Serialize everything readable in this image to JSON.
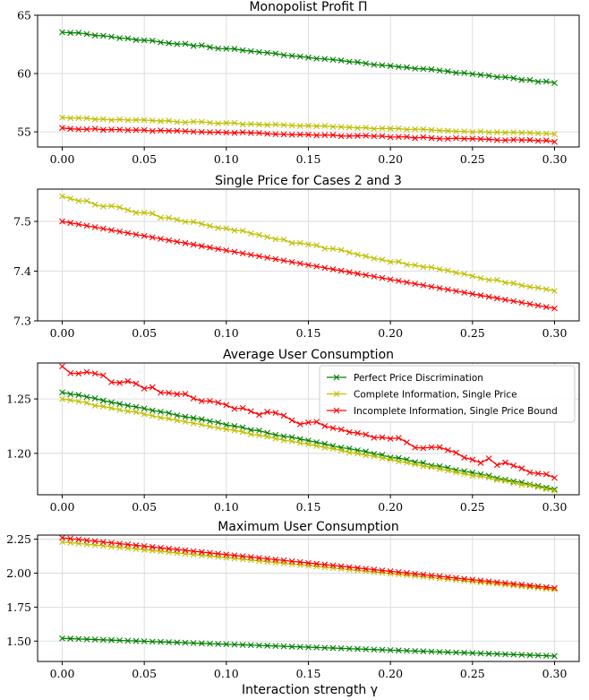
{
  "figure": {
    "xlabel": "Interaction strength γ"
  },
  "colors": {
    "ppd": "#008000",
    "cisp": "#bfbf00",
    "iispb": "#ff0000",
    "grid": "#d6d6d6",
    "axis": "#000000"
  },
  "legend_entries": [
    "Perfect Price Discrimination",
    "Complete Information, Single Price",
    "Incomplete Information, Single Price Bound"
  ],
  "chart_data": [
    {
      "type": "line",
      "title": "Monopolist Profit Π",
      "xlabel": "",
      "ylabel": "",
      "xlim": [
        -0.015,
        0.315
      ],
      "ylim": [
        53.7,
        65
      ],
      "x_ticks": [
        0.0,
        0.05,
        0.1,
        0.15,
        0.2,
        0.25,
        0.3
      ],
      "x_tick_labels": [
        "0.00",
        "0.05",
        "0.10",
        "0.15",
        "0.20",
        "0.25",
        "0.30"
      ],
      "y_ticks": [
        55,
        60,
        65
      ],
      "y_tick_labels": [
        "55",
        "60",
        "65"
      ],
      "grid": true,
      "legend": "none",
      "x": {
        "start": 0.0,
        "end": 0.3,
        "count": 61
      },
      "series": [
        {
          "name": "Perfect Price Discrimination",
          "color_key": "ppd",
          "marker": "x",
          "start": 63.6,
          "end": 59.2,
          "jitter": 0.06
        },
        {
          "name": "Complete Information, Single Price",
          "color_key": "cisp",
          "marker": "x",
          "start": 56.2,
          "end": 54.8,
          "jitter": 0.06
        },
        {
          "name": "Incomplete Information, Single Price Bound",
          "color_key": "iispb",
          "marker": "x",
          "start": 55.3,
          "end": 54.2,
          "jitter": 0.06
        }
      ]
    },
    {
      "type": "line",
      "title": "Single Price for Cases 2 and 3",
      "xlabel": "",
      "ylabel": "",
      "xlim": [
        -0.015,
        0.315
      ],
      "ylim": [
        7.3,
        7.565
      ],
      "x_ticks": [
        0.0,
        0.05,
        0.1,
        0.15,
        0.2,
        0.25,
        0.3
      ],
      "x_tick_labels": [
        "0.00",
        "0.05",
        "0.10",
        "0.15",
        "0.20",
        "0.25",
        "0.30"
      ],
      "y_ticks": [
        7.3,
        7.4,
        7.5
      ],
      "y_tick_labels": [
        "7.3",
        "7.4",
        "7.5"
      ],
      "grid": true,
      "legend": "none",
      "x": {
        "start": 0.0,
        "end": 0.3,
        "count": 61
      },
      "series": [
        {
          "name": "Complete Information, Single Price",
          "color_key": "cisp",
          "marker": "x",
          "start": 7.548,
          "end": 7.358,
          "jitter": 0.003
        },
        {
          "name": "Incomplete Information, Single Price Bound",
          "color_key": "iispb",
          "marker": "x",
          "start": 7.5,
          "end": 7.325,
          "jitter": 0.0
        }
      ]
    },
    {
      "type": "line",
      "title": "Average User Consumption",
      "xlabel": "",
      "ylabel": "",
      "xlim": [
        -0.015,
        0.315
      ],
      "ylim": [
        1.162,
        1.283
      ],
      "x_ticks": [
        0.0,
        0.05,
        0.1,
        0.15,
        0.2,
        0.25,
        0.3
      ],
      "x_tick_labels": [
        "0.00",
        "0.05",
        "0.10",
        "0.15",
        "0.20",
        "0.25",
        "0.30"
      ],
      "y_ticks": [
        1.2,
        1.25
      ],
      "y_tick_labels": [
        "1.20",
        "1.25"
      ],
      "grid": true,
      "legend": "top-right",
      "x": {
        "start": 0.0,
        "end": 0.3,
        "count": 61
      },
      "series": [
        {
          "name": "Perfect Price Discrimination",
          "color_key": "ppd",
          "marker": "x",
          "start": 1.256,
          "end": 1.167,
          "jitter": 0.0006
        },
        {
          "name": "Complete Information, Single Price",
          "color_key": "cisp",
          "marker": "x",
          "start": 1.25,
          "end": 1.166,
          "jitter": 0.0006
        },
        {
          "name": "Incomplete Information, Single Price Bound",
          "color_key": "iispb",
          "marker": "x",
          "start": 1.277,
          "end": 1.18,
          "jitter": 0.0035
        }
      ]
    },
    {
      "type": "line",
      "title": "Maximum User Consumption",
      "xlabel": "",
      "ylabel": "",
      "xlim": [
        -0.015,
        0.315
      ],
      "ylim": [
        1.35,
        2.28
      ],
      "x_ticks": [
        0.0,
        0.05,
        0.1,
        0.15,
        0.2,
        0.25,
        0.3
      ],
      "x_tick_labels": [
        "0.00",
        "0.05",
        "0.10",
        "0.15",
        "0.20",
        "0.25",
        "0.30"
      ],
      "y_ticks": [
        1.5,
        1.75,
        2.0,
        2.25
      ],
      "y_tick_labels": [
        "1.50",
        "1.75",
        "2.00",
        "2.25"
      ],
      "grid": true,
      "legend": "none",
      "x": {
        "start": 0.0,
        "end": 0.3,
        "count": 61
      },
      "series": [
        {
          "name": "Perfect Price Discrimination",
          "color_key": "ppd",
          "marker": "x",
          "start": 1.52,
          "end": 1.39,
          "jitter": 0.0
        },
        {
          "name": "Complete Information, Single Price",
          "color_key": "cisp",
          "marker": "x",
          "start": 2.23,
          "end": 1.88,
          "jitter": 0.0
        },
        {
          "name": "Incomplete Information, Single Price Bound",
          "color_key": "iispb",
          "marker": "x",
          "start": 2.26,
          "end": 1.89,
          "jitter": 0.0
        }
      ]
    }
  ]
}
